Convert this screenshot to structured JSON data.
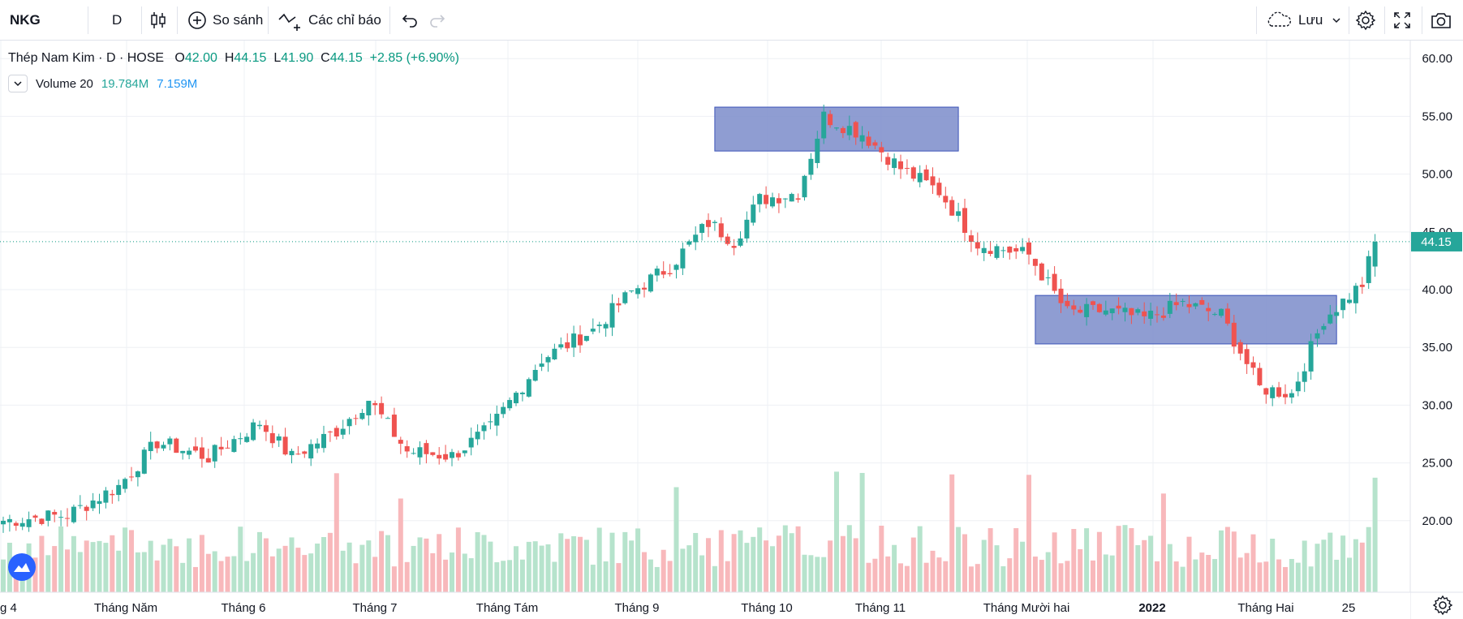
{
  "toolbar": {
    "symbol": "NKG",
    "interval": "D",
    "compare_label": "So sánh",
    "indicators_label": "Các chỉ báo",
    "save_label": "Lưu"
  },
  "legend": {
    "name": "Thép Nam Kim",
    "sep1": "·",
    "interval": "D",
    "sep2": "·",
    "exchange": "HOSE",
    "open_key": "O",
    "open": "42.00",
    "high_key": "H",
    "high": "44.15",
    "low_key": "L",
    "low": "41.90",
    "close_key": "C",
    "close": "44.15",
    "change": "+2.85 (+6.90%)",
    "volume_label": "Volume 20",
    "volume_value": "19.784M",
    "volume_ma": "7.159M"
  },
  "colors": {
    "up": "#26a69a",
    "down": "#ef5350",
    "up_vol": "#b6e3cc",
    "down_vol": "#f8b8bb",
    "box_fill": "#7b8cca",
    "box_stroke": "#3b53b8",
    "price_line": "#089981",
    "ma_color": "#2196f3"
  },
  "chart_data": {
    "type": "candlestick",
    "title": "Thép Nam Kim · D · HOSE",
    "y_axis": {
      "min": 15.0,
      "max": 61.0,
      "ticks": [
        "20.00",
        "25.00",
        "30.00",
        "35.00",
        "40.00",
        "45.00",
        "50.00",
        "55.00",
        "60.00"
      ],
      "position": "right"
    },
    "x_axis_labels": [
      "g 4",
      "Tháng Năm",
      "Tháng 6",
      "Tháng 7",
      "Tháng Tám",
      "Tháng 9",
      "Tháng 10",
      "Tháng 11",
      "Tháng Mười hai",
      "2022",
      "Tháng Hai",
      "25"
    ],
    "last_price": "44.15",
    "grid": true,
    "waypoints": [
      [
        0,
        20.0
      ],
      [
        10,
        20.5
      ],
      [
        18,
        23.0
      ],
      [
        24,
        26.8
      ],
      [
        32,
        25.5
      ],
      [
        40,
        28.5
      ],
      [
        45,
        25.5
      ],
      [
        52,
        27.8
      ],
      [
        57,
        30.5
      ],
      [
        63,
        26.0
      ],
      [
        70,
        25.6
      ],
      [
        76,
        28.0
      ],
      [
        84,
        34.0
      ],
      [
        92,
        36.5
      ],
      [
        98,
        39.8
      ],
      [
        104,
        42.0
      ],
      [
        110,
        45.8
      ],
      [
        114,
        44.2
      ],
      [
        118,
        47.8
      ],
      [
        124,
        48.4
      ],
      [
        128,
        55.0
      ],
      [
        134,
        53.5
      ],
      [
        140,
        50.5
      ],
      [
        146,
        48.5
      ],
      [
        152,
        44.0
      ],
      [
        160,
        43.0
      ],
      [
        166,
        38.0
      ],
      [
        172,
        38.2
      ],
      [
        178,
        37.5
      ],
      [
        184,
        38.8
      ],
      [
        190,
        37.8
      ],
      [
        196,
        31.5
      ],
      [
        201,
        31.0
      ],
      [
        206,
        37.5
      ],
      [
        212,
        40.5
      ],
      [
        214,
        44.15
      ]
    ],
    "volume_spikes": [
      52,
      62,
      105,
      130,
      134,
      148,
      160,
      181,
      214
    ],
    "zones": [
      {
        "x_from": 111,
        "x_to": 149,
        "y_from": 52.0,
        "y_to": 55.8
      },
      {
        "x_from": 161,
        "x_to": 208,
        "y_from": 35.3,
        "y_to": 39.5
      }
    ]
  }
}
